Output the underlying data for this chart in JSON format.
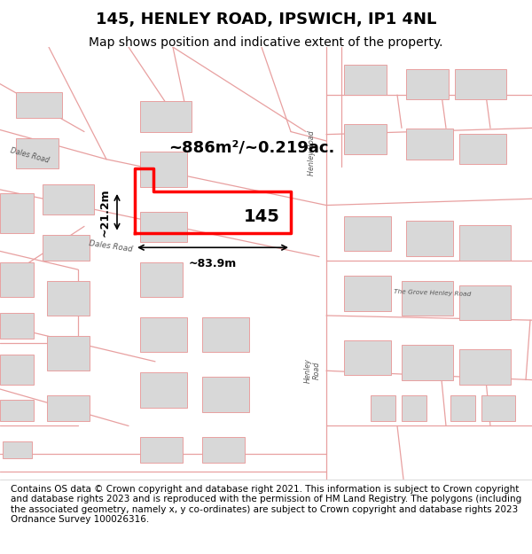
{
  "title": "145, HENLEY ROAD, IPSWICH, IP1 4NL",
  "subtitle": "Map shows position and indicative extent of the property.",
  "footer": "Contains OS data © Crown copyright and database right 2021. This information is subject to Crown copyright and database rights 2023 and is reproduced with the permission of HM Land Registry. The polygons (including the associated geometry, namely x, y co-ordinates) are subject to Crown copyright and database rights 2023 Ordnance Survey 100026316.",
  "map_bg": "#f5f5f5",
  "road_color": "#e8a0a0",
  "building_color": "#d8d8d8",
  "highlight_color": "#ff0000",
  "area_text": "~886m²/~0.219ac.",
  "label_145": "145",
  "width_label": "~83.9m",
  "height_label": "~21.2m",
  "title_fontsize": 13,
  "subtitle_fontsize": 10,
  "footer_fontsize": 7.5,
  "road_label_color": "#555555",
  "dim_line_color": "#000000"
}
